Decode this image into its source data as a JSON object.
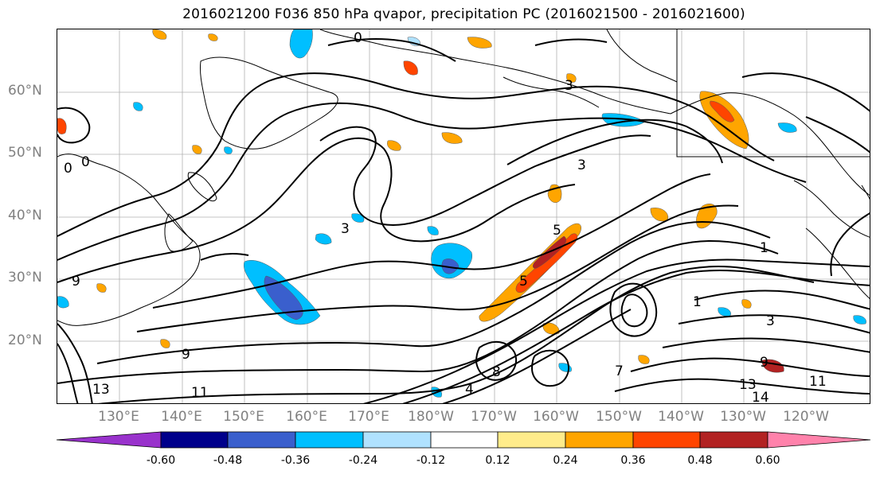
{
  "title": "2016021200 F036 850 hPa qvapor, precipitation PC (2016021500 - 2016021600)",
  "latitude_labels": [
    "60°N",
    "50°N",
    "40°N",
    "30°N",
    "20°N"
  ],
  "longitude_labels": [
    "130°E",
    "140°E",
    "150°E",
    "160°E",
    "170°E",
    "180°W",
    "170°W",
    "160°W",
    "150°W",
    "140°W",
    "130°W",
    "120°W"
  ],
  "contour_labels": [
    "0",
    "0",
    "0",
    "3",
    "3",
    "3",
    "3",
    "5",
    "5",
    "1",
    "1",
    "9",
    "9",
    "11",
    "11",
    "13",
    "13",
    "14",
    "9",
    "8",
    "4",
    "7"
  ],
  "colorbar": {
    "tick_labels": [
      "-0.60",
      "-0.48",
      "-0.36",
      "-0.24",
      "-0.12",
      "0.12",
      "0.24",
      "0.36",
      "0.48",
      "0.60"
    ],
    "colors": [
      "#9932cc",
      "#00008b",
      "#3a5fcd",
      "#00bfff",
      "#b0e2ff",
      "#ffffff",
      "#ffec8b",
      "#ffa500",
      "#ff4500",
      "#b22222",
      "#ff82ab"
    ]
  }
}
